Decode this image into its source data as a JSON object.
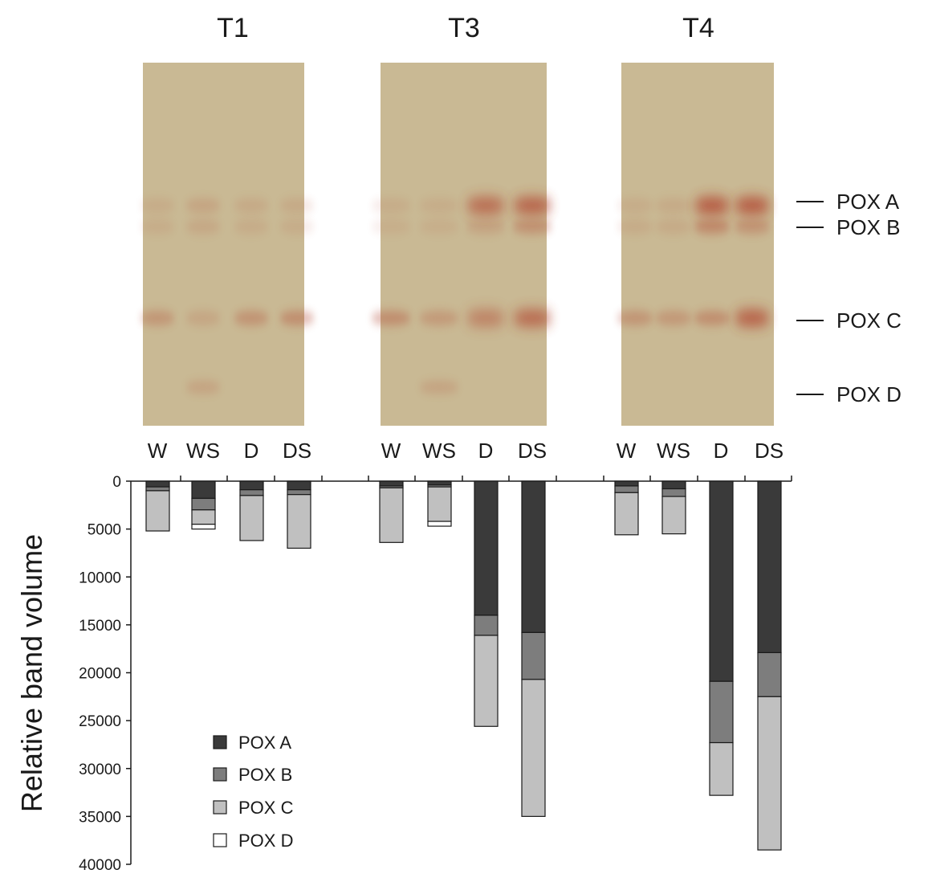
{
  "gels": [
    {
      "title": "T1"
    },
    {
      "title": "T3"
    },
    {
      "title": "T4"
    }
  ],
  "band_labels": [
    "POX A",
    "POX B",
    "POX C",
    "POX D"
  ],
  "lane_labels": [
    "W",
    "WS",
    "D",
    "DS"
  ],
  "colors": {
    "gel_background": "#c9b994",
    "band": "#b0402c",
    "pox_a": "#3a3a3a",
    "pox_b": "#7d7d7d",
    "pox_c": "#c0c0c0",
    "pox_d": "#ffffff"
  },
  "chart_data": {
    "type": "bar",
    "stacked": true,
    "orientation": "downward",
    "groups": [
      "T1",
      "T3",
      "T4"
    ],
    "categories": [
      "W",
      "WS",
      "D",
      "DS"
    ],
    "ylabel": "Relative band volume",
    "ylim": [
      0,
      40000
    ],
    "yticks": [
      0,
      5000,
      10000,
      15000,
      20000,
      25000,
      30000,
      35000,
      40000
    ],
    "legend": {
      "position": "bottom-left",
      "entries": [
        "POX A",
        "POX B",
        "POX C",
        "POX D"
      ]
    },
    "series": [
      {
        "name": "POX A",
        "color": "#3a3a3a",
        "values": [
          [
            600,
            1800,
            900,
            900
          ],
          [
            500,
            400,
            14000,
            15800
          ],
          [
            500,
            800,
            20900,
            17900
          ]
        ]
      },
      {
        "name": "POX B",
        "color": "#7d7d7d",
        "values": [
          [
            400,
            1200,
            600,
            500
          ],
          [
            200,
            200,
            2100,
            4900
          ],
          [
            700,
            800,
            6400,
            4600
          ]
        ]
      },
      {
        "name": "POX C",
        "color": "#c0c0c0",
        "values": [
          [
            4200,
            1500,
            4700,
            5600
          ],
          [
            5700,
            3600,
            9500,
            14300
          ],
          [
            4400,
            3900,
            5500,
            16000
          ]
        ]
      },
      {
        "name": "POX D",
        "color": "#ffffff",
        "values": [
          [
            0,
            500,
            0,
            0
          ],
          [
            0,
            500,
            0,
            0
          ],
          [
            0,
            0,
            0,
            0
          ]
        ]
      }
    ]
  }
}
